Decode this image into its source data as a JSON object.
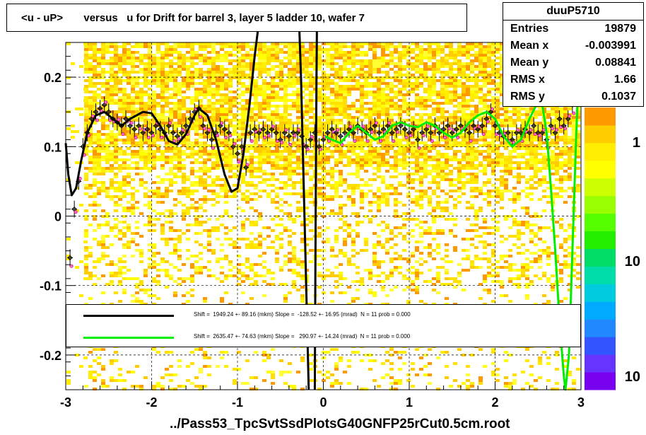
{
  "title": "<u - uP>       versus   u for Drift for barrel 3, layer 5 ladder 10, wafer 7",
  "stats": {
    "name": "duuP5710",
    "rows": [
      {
        "k": "Entries",
        "v": "19879"
      },
      {
        "k": "Mean x",
        "v": "-0.003991"
      },
      {
        "k": "Mean y",
        "v": "0.08841"
      },
      {
        "k": "RMS x",
        "v": "1.66"
      },
      {
        "k": "RMS y",
        "v": "0.1037"
      }
    ]
  },
  "legend": [
    {
      "color": "#000000",
      "text": "Shift =  1949.24 +- 89.16 (mkm) Slope =  -128.52 +- 16.95 (mrad)  N = 11 prob = 0.000"
    },
    {
      "color": "#00ee00",
      "text": "Shift =  2635.47 +- 74.63 (mkm) Slope =   290.97 +- 14.24 (mrad)  N = 11 prob = 0.000"
    }
  ],
  "xtitle": "../Pass53_TpcSvtSsdPlotsG40GNFP25rCut0.5cm.root",
  "chart_data": {
    "type": "heatmap",
    "xlim": [
      -3,
      3
    ],
    "ylim": [
      -0.25,
      0.25
    ],
    "x_ticks": [
      -3,
      -2,
      -1,
      0,
      1,
      2,
      3
    ],
    "y_ticks": [
      -0.2,
      -0.1,
      0,
      0.1,
      0.2
    ],
    "palette_tick_labels": [
      "1",
      "10",
      "10"
    ],
    "grid": true,
    "profile_points": [
      [
        -2.95,
        -0.06
      ],
      [
        -2.9,
        0.01
      ],
      [
        -2.85,
        0.05
      ],
      [
        -2.8,
        0.1
      ],
      [
        -2.75,
        0.12
      ],
      [
        -2.7,
        0.14
      ],
      [
        -2.65,
        0.15
      ],
      [
        -2.6,
        0.155
      ],
      [
        -2.55,
        0.16
      ],
      [
        -2.5,
        0.15
      ],
      [
        -2.45,
        0.14
      ],
      [
        -2.4,
        0.135
      ],
      [
        -2.35,
        0.13
      ],
      [
        -2.3,
        0.14
      ],
      [
        -2.25,
        0.13
      ],
      [
        -2.2,
        0.125
      ],
      [
        -2.15,
        0.13
      ],
      [
        -2.1,
        0.12
      ],
      [
        -2.05,
        0.125
      ],
      [
        -2.0,
        0.12
      ],
      [
        -1.95,
        0.13
      ],
      [
        -1.9,
        0.125
      ],
      [
        -1.85,
        0.12
      ],
      [
        -1.8,
        0.13
      ],
      [
        -1.75,
        0.12
      ],
      [
        -1.7,
        0.115
      ],
      [
        -1.65,
        0.12
      ],
      [
        -1.6,
        0.13
      ],
      [
        -1.55,
        0.14
      ],
      [
        -1.5,
        0.15
      ],
      [
        -1.45,
        0.155
      ],
      [
        -1.4,
        0.13
      ],
      [
        -1.35,
        0.12
      ],
      [
        -1.3,
        0.11
      ],
      [
        -1.25,
        0.12
      ],
      [
        -1.2,
        0.13
      ],
      [
        -1.15,
        0.125
      ],
      [
        -1.1,
        0.12
      ],
      [
        -1.05,
        0.1
      ],
      [
        -1.0,
        0.09
      ],
      [
        -0.95,
        0.1
      ],
      [
        -0.9,
        0.07
      ],
      [
        -0.85,
        0.12
      ],
      [
        -0.8,
        0.125
      ],
      [
        -0.75,
        0.12
      ],
      [
        -0.7,
        0.125
      ],
      [
        -0.65,
        0.12
      ],
      [
        -0.6,
        0.125
      ],
      [
        -0.55,
        0.12
      ],
      [
        -0.5,
        0.11
      ],
      [
        -0.45,
        0.12
      ],
      [
        -0.4,
        0.115
      ],
      [
        -0.35,
        0.12
      ],
      [
        -0.3,
        0.12
      ],
      [
        -0.25,
        0.115
      ],
      [
        -0.2,
        0.1
      ],
      [
        -0.15,
        0.11
      ],
      [
        -0.1,
        0.12
      ],
      [
        -0.05,
        0.1
      ],
      [
        0.0,
        0.11
      ],
      [
        0.05,
        0.12
      ],
      [
        0.1,
        0.125
      ],
      [
        0.15,
        0.12
      ],
      [
        0.2,
        0.115
      ],
      [
        0.25,
        0.12
      ],
      [
        0.3,
        0.125
      ],
      [
        0.35,
        0.12
      ],
      [
        0.4,
        0.13
      ],
      [
        0.45,
        0.125
      ],
      [
        0.5,
        0.12
      ],
      [
        0.55,
        0.125
      ],
      [
        0.6,
        0.13
      ],
      [
        0.65,
        0.12
      ],
      [
        0.7,
        0.125
      ],
      [
        0.75,
        0.13
      ],
      [
        0.8,
        0.12
      ],
      [
        0.85,
        0.125
      ],
      [
        0.9,
        0.13
      ],
      [
        0.95,
        0.125
      ],
      [
        1.0,
        0.12
      ],
      [
        1.05,
        0.125
      ],
      [
        1.1,
        0.11
      ],
      [
        1.15,
        0.12
      ],
      [
        1.2,
        0.125
      ],
      [
        1.25,
        0.12
      ],
      [
        1.3,
        0.13
      ],
      [
        1.35,
        0.12
      ],
      [
        1.4,
        0.125
      ],
      [
        1.45,
        0.13
      ],
      [
        1.5,
        0.12
      ],
      [
        1.55,
        0.125
      ],
      [
        1.6,
        0.13
      ],
      [
        1.65,
        0.125
      ],
      [
        1.7,
        0.12
      ],
      [
        1.75,
        0.13
      ],
      [
        1.8,
        0.125
      ],
      [
        1.85,
        0.13
      ],
      [
        1.9,
        0.14
      ],
      [
        1.95,
        0.15
      ],
      [
        2.0,
        0.13
      ],
      [
        2.05,
        0.12
      ],
      [
        2.1,
        0.115
      ],
      [
        2.15,
        0.12
      ],
      [
        2.2,
        0.11
      ],
      [
        2.25,
        0.12
      ],
      [
        2.3,
        0.12
      ],
      [
        2.35,
        0.125
      ],
      [
        2.4,
        0.12
      ],
      [
        2.45,
        0.13
      ],
      [
        2.5,
        0.12
      ],
      [
        2.55,
        0.12
      ],
      [
        2.6,
        0.11
      ],
      [
        2.65,
        0.13
      ],
      [
        2.7,
        0.12
      ],
      [
        2.75,
        0.14
      ],
      [
        2.8,
        0.13
      ],
      [
        2.85,
        0.14
      ],
      [
        2.9,
        0.16
      ]
    ],
    "black_fit": [
      [
        -3.0,
        0.105
      ],
      [
        -2.97,
        0.06
      ],
      [
        -2.93,
        0.03
      ],
      [
        -2.88,
        0.04
      ],
      [
        -2.82,
        0.08
      ],
      [
        -2.75,
        0.12
      ],
      [
        -2.65,
        0.145
      ],
      [
        -2.55,
        0.15
      ],
      [
        -2.45,
        0.14
      ],
      [
        -2.35,
        0.13
      ],
      [
        -2.25,
        0.14
      ],
      [
        -2.1,
        0.15
      ],
      [
        -2.0,
        0.148
      ],
      [
        -1.9,
        0.13
      ],
      [
        -1.8,
        0.108
      ],
      [
        -1.7,
        0.103
      ],
      [
        -1.6,
        0.118
      ],
      [
        -1.5,
        0.145
      ],
      [
        -1.45,
        0.155
      ],
      [
        -1.35,
        0.145
      ],
      [
        -1.25,
        0.11
      ],
      [
        -1.15,
        0.06
      ],
      [
        -1.07,
        0.035
      ],
      [
        -1.0,
        0.04
      ],
      [
        -0.93,
        0.09
      ],
      [
        -0.86,
        0.16
      ],
      [
        -0.8,
        0.23
      ],
      [
        -0.76,
        0.27
      ]
    ],
    "black_fit_dip": [
      [
        -0.28,
        0.27
      ],
      [
        -0.26,
        0.2
      ],
      [
        -0.24,
        0.1
      ],
      [
        -0.22,
        0.0
      ],
      [
        -0.2,
        -0.1
      ],
      [
        -0.18,
        -0.2
      ],
      [
        -0.17,
        -0.25
      ]
    ],
    "black_fit_rise": [
      [
        -0.1,
        -0.25
      ],
      [
        -0.09,
        0.0
      ],
      [
        -0.08,
        0.2
      ],
      [
        -0.075,
        0.27
      ]
    ],
    "green_fit": [
      [
        0.02,
        0.115
      ],
      [
        0.1,
        0.11
      ],
      [
        0.2,
        0.105
      ],
      [
        0.3,
        0.12
      ],
      [
        0.4,
        0.13
      ],
      [
        0.5,
        0.12
      ],
      [
        0.6,
        0.11
      ],
      [
        0.7,
        0.115
      ],
      [
        0.8,
        0.13
      ],
      [
        0.9,
        0.135
      ],
      [
        1.0,
        0.13
      ],
      [
        1.1,
        0.128
      ],
      [
        1.2,
        0.135
      ],
      [
        1.3,
        0.13
      ],
      [
        1.4,
        0.12
      ],
      [
        1.5,
        0.113
      ],
      [
        1.6,
        0.12
      ],
      [
        1.7,
        0.135
      ],
      [
        1.8,
        0.145
      ],
      [
        1.9,
        0.15
      ],
      [
        2.0,
        0.14
      ],
      [
        2.1,
        0.115
      ],
      [
        2.2,
        0.1
      ],
      [
        2.3,
        0.11
      ],
      [
        2.4,
        0.14
      ],
      [
        2.5,
        0.165
      ],
      [
        2.55,
        0.16
      ],
      [
        2.6,
        0.12
      ],
      [
        2.65,
        0.04
      ],
      [
        2.7,
        -0.05
      ],
      [
        2.75,
        -0.15
      ],
      [
        2.8,
        -0.23
      ],
      [
        2.82,
        -0.25
      ],
      [
        2.86,
        -0.2
      ],
      [
        2.9,
        -0.05
      ],
      [
        2.94,
        0.1
      ],
      [
        2.97,
        0.2
      ],
      [
        2.99,
        0.25
      ]
    ]
  }
}
